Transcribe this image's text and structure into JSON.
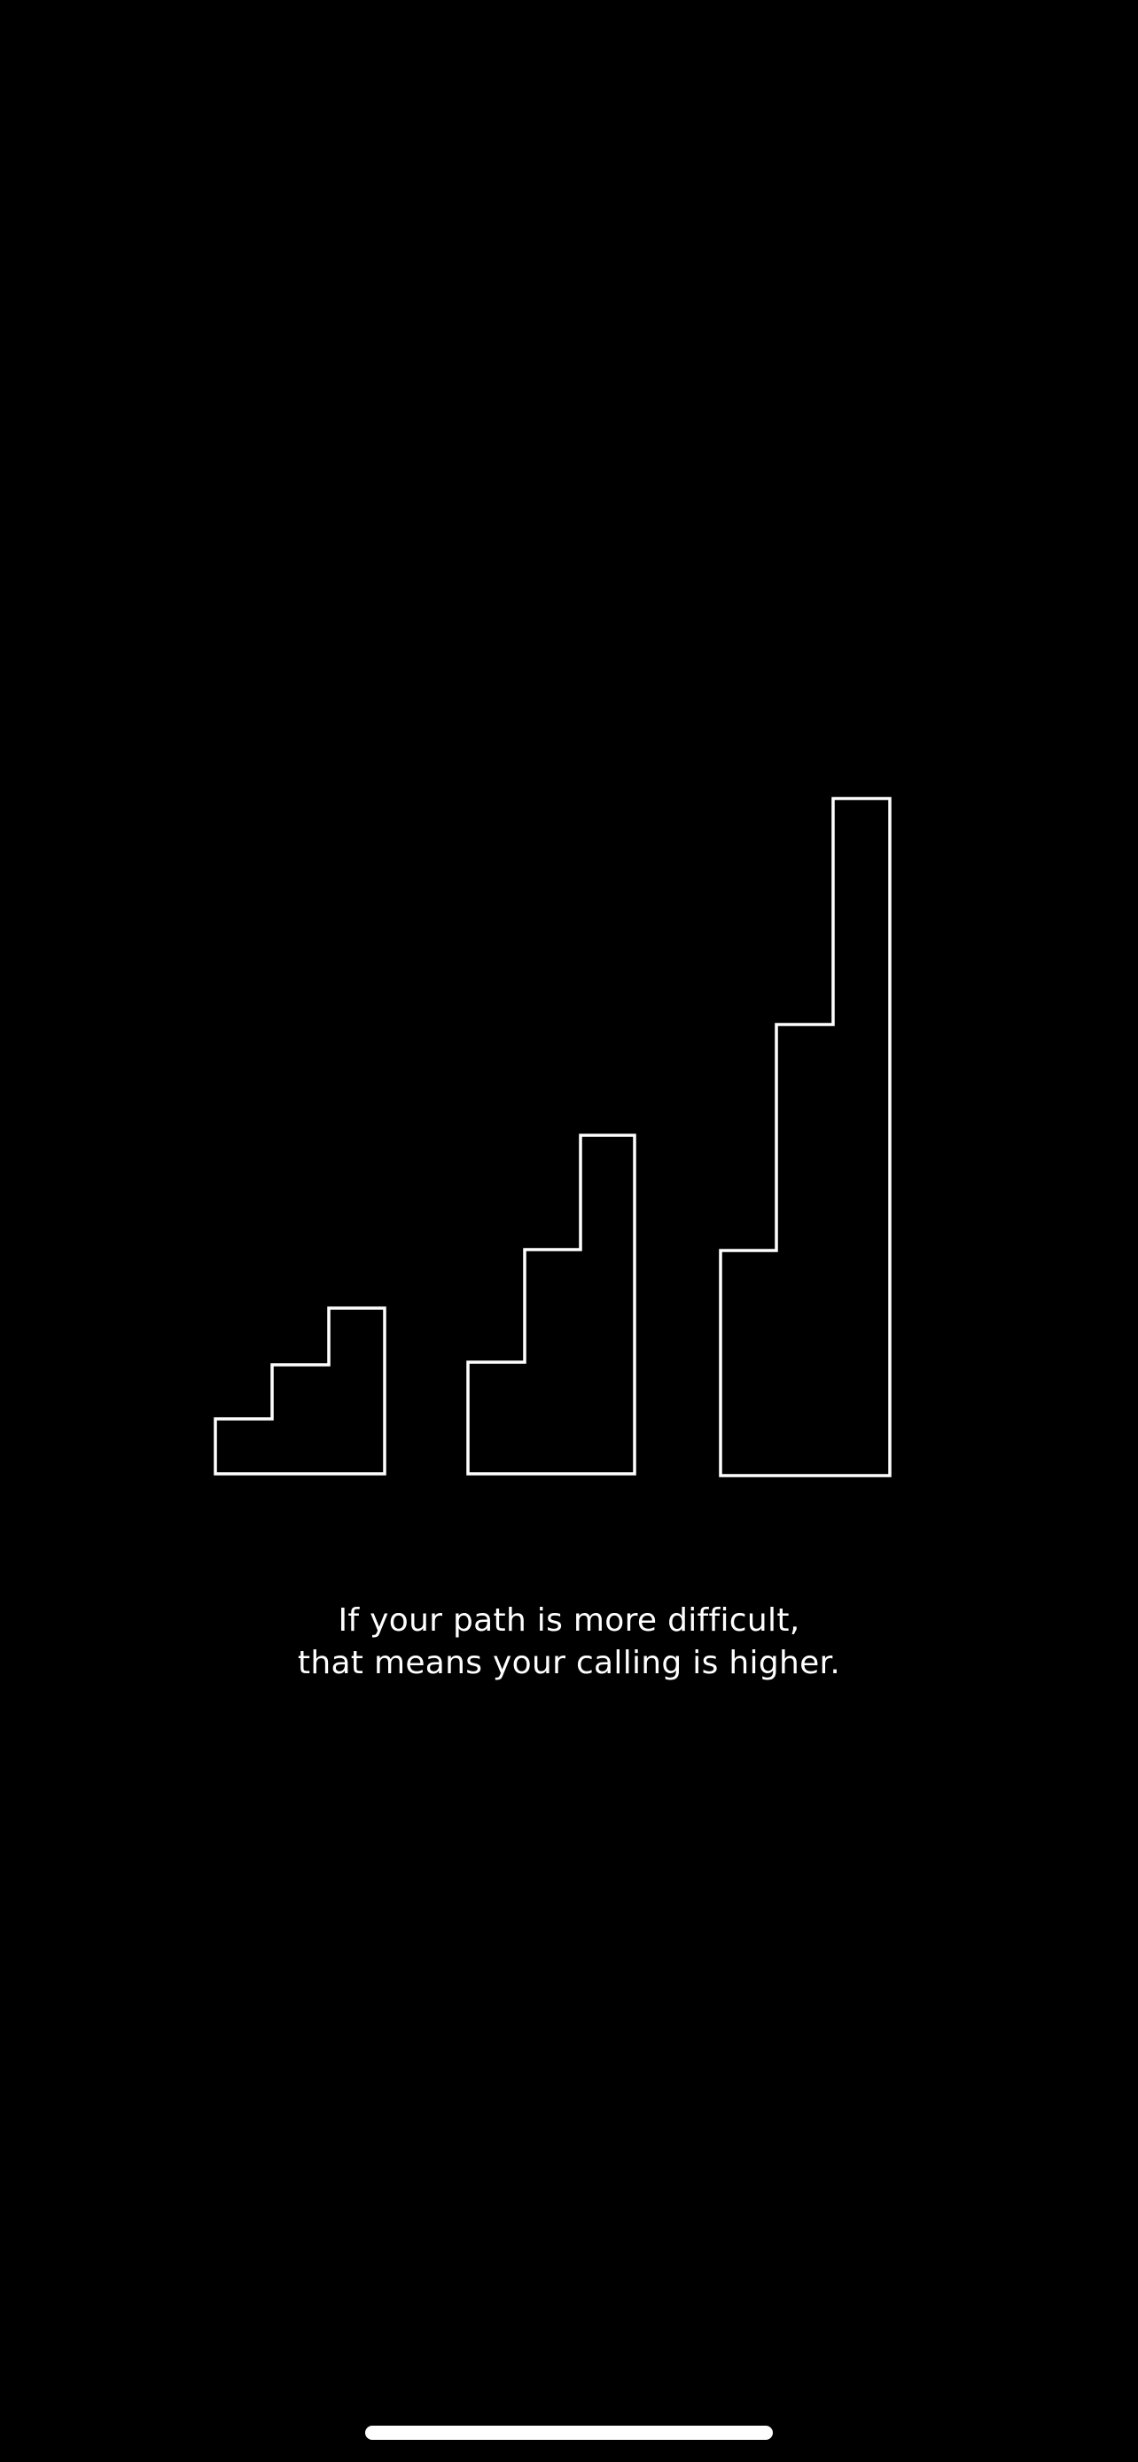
{
  "colors": {
    "background": "#000000",
    "outline": "#ffffff",
    "text": "#ffffff",
    "home_indicator": "#ffffff"
  },
  "illustration": {
    "icon": "stairs-icon",
    "staircases": [
      {
        "name": "small-staircase",
        "steps": 3
      },
      {
        "name": "medium-staircase",
        "steps": 3
      },
      {
        "name": "tall-staircase",
        "steps": 3
      }
    ]
  },
  "quote": {
    "line1": "If your path is more difficult,",
    "line2": "that means your calling is higher."
  },
  "home_indicator": {
    "icon": "home-indicator-bar"
  }
}
